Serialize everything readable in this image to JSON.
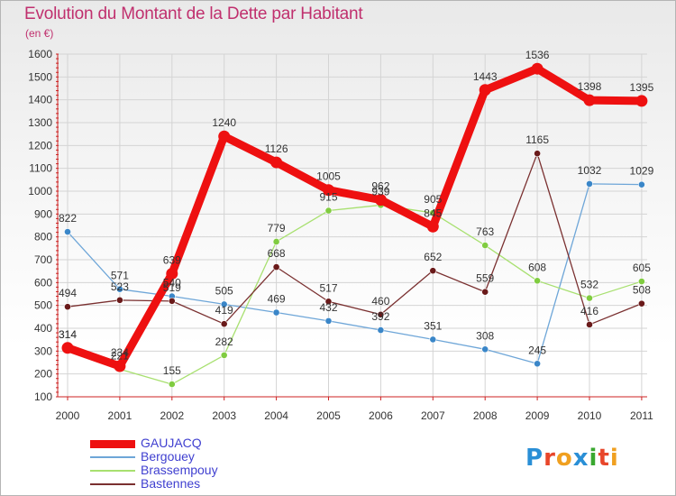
{
  "title": "Evolution du Montant de la Dette par Habitant",
  "subtitle": "(en €)",
  "logo": {
    "text": "Proxiti",
    "letter_colors": [
      "#2a8fd6",
      "#e8462a",
      "#f0a020",
      "#2a8fd6",
      "#3aa830",
      "#e8462a",
      "#f0a020"
    ]
  },
  "chart_data": {
    "type": "line",
    "title": "Evolution du Montant de la Dette par Habitant",
    "subtitle": "(en €)",
    "xlabel": "",
    "ylabel": "",
    "x": [
      "2000",
      "2001",
      "2002",
      "2003",
      "2004",
      "2005",
      "2006",
      "2007",
      "2008",
      "2009",
      "2010",
      "2011"
    ],
    "y_ticks": [
      100,
      200,
      300,
      400,
      500,
      600,
      700,
      800,
      900,
      1000,
      1100,
      1200,
      1300,
      1400,
      1500,
      1600
    ],
    "ylim": [
      100,
      1600
    ],
    "grid": true,
    "legend_position": "bottom-left",
    "series": [
      {
        "name": "GAUJACQ",
        "color": "#ee1010",
        "marker_color": "#ee1010",
        "emphasis": true,
        "values": [
          314,
          234,
          639,
          1240,
          1126,
          1005,
          962,
          845,
          1443,
          1536,
          1398,
          1395
        ]
      },
      {
        "name": "Bergouey",
        "color": "#6ea6d8",
        "marker_color": "#3a86c8",
        "emphasis": false,
        "values": [
          822,
          571,
          540,
          505,
          469,
          432,
          392,
          351,
          308,
          245,
          1032,
          1029
        ]
      },
      {
        "name": "Brassempouy",
        "color": "#a8e070",
        "marker_color": "#80cc40",
        "emphasis": false,
        "values": [
          314,
          221,
          155,
          282,
          779,
          915,
          939,
          905,
          763,
          608,
          532,
          605
        ]
      },
      {
        "name": "Bastennes",
        "color": "#7a3030",
        "marker_color": "#6a1a1a",
        "emphasis": false,
        "values": [
          494,
          523,
          519,
          419,
          668,
          517,
          460,
          652,
          559,
          1165,
          416,
          508
        ]
      }
    ]
  }
}
